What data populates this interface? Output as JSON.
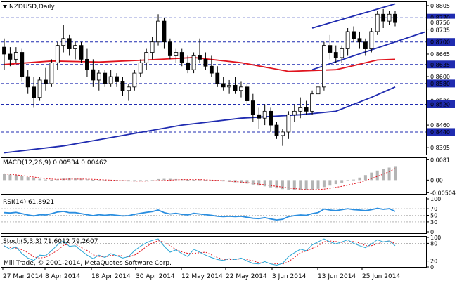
{
  "header": {
    "symbol_label": "NZDUSD,Daily",
    "macd_label": "MACD(12,26,9) 0.00534 0.00462",
    "rsi_label": "RSI(14) 61.8921",
    "stoch_label": "Stoch(5,3,3) 71.6012 79.2607",
    "copyright": "Mill Trade, © 2001-2014, MetaQuotes Software Corp."
  },
  "colors": {
    "bull": "#ffffff",
    "bear": "#000000",
    "ma_fast": "#e0141e",
    "ma_slow": "#1f2bb0",
    "level_line": "#1f2bb0",
    "channel": "#1f2bb0",
    "macd_hist": "#b4b4b4",
    "macd_signal": "#e0141e",
    "rsi": "#2a8ee0",
    "stoch_main": "#2aa6d6",
    "stoch_signal": "#e0141e",
    "grid": "#888888"
  },
  "chart_data": [
    {
      "type": "candlestick",
      "symbol": "NZDUSD",
      "timeframe": "Daily",
      "y_ticks": [
        "0.8805",
        "0.8735",
        "0.8665",
        "0.8600",
        "0.8530",
        "0.8460",
        "0.8395"
      ],
      "ylim": [
        0.8375,
        0.8815
      ],
      "x_ticks": [
        "27 Mar 2014",
        "8 Apr 2014",
        "18 Apr 2014",
        "30 Apr 2014",
        "12 May 2014",
        "22 May 2014",
        "3 Jun 2014",
        "13 Jun 2014",
        "25 Jun 2014"
      ],
      "levels": [
        "0.8770",
        "0.8700",
        "0.8635",
        "0.8580",
        "0.8520",
        "0.8440"
      ],
      "current_price": "0.8756",
      "candles": [
        [
          0.8685,
          0.871,
          0.862,
          0.8665
        ],
        [
          0.8665,
          0.8685,
          0.863,
          0.865
        ],
        [
          0.865,
          0.8685,
          0.864,
          0.867
        ],
        [
          0.867,
          0.868,
          0.8585,
          0.86
        ],
        [
          0.86,
          0.862,
          0.855,
          0.857
        ],
        [
          0.857,
          0.86,
          0.851,
          0.854
        ],
        [
          0.854,
          0.86,
          0.853,
          0.859
        ],
        [
          0.859,
          0.8625,
          0.856,
          0.858
        ],
        [
          0.858,
          0.865,
          0.857,
          0.864
        ],
        [
          0.864,
          0.87,
          0.862,
          0.869
        ],
        [
          0.869,
          0.875,
          0.867,
          0.871
        ],
        [
          0.871,
          0.872,
          0.866,
          0.868
        ],
        [
          0.868,
          0.87,
          0.865,
          0.869
        ],
        [
          0.869,
          0.87,
          0.864,
          0.865
        ],
        [
          0.865,
          0.868,
          0.86,
          0.862
        ],
        [
          0.862,
          0.865,
          0.857,
          0.859
        ],
        [
          0.859,
          0.862,
          0.856,
          0.861
        ],
        [
          0.861,
          0.862,
          0.857,
          0.858
        ],
        [
          0.858,
          0.862,
          0.857,
          0.86
        ],
        [
          0.86,
          0.861,
          0.857,
          0.8585
        ],
        [
          0.8585,
          0.86,
          0.8545,
          0.856
        ],
        [
          0.856,
          0.858,
          0.853,
          0.857
        ],
        [
          0.857,
          0.862,
          0.856,
          0.861
        ],
        [
          0.861,
          0.865,
          0.86,
          0.864
        ],
        [
          0.864,
          0.868,
          0.862,
          0.867
        ],
        [
          0.867,
          0.8715,
          0.865,
          0.87
        ],
        [
          0.87,
          0.878,
          0.869,
          0.876
        ],
        [
          0.876,
          0.877,
          0.868,
          0.87
        ],
        [
          0.87,
          0.871,
          0.865,
          0.866
        ],
        [
          0.866,
          0.868,
          0.864,
          0.867
        ],
        [
          0.867,
          0.868,
          0.863,
          0.864
        ],
        [
          0.864,
          0.866,
          0.861,
          0.862
        ],
        [
          0.862,
          0.867,
          0.861,
          0.866
        ],
        [
          0.866,
          0.871,
          0.864,
          0.865
        ],
        [
          0.865,
          0.867,
          0.862,
          0.863
        ],
        [
          0.863,
          0.866,
          0.86,
          0.861
        ],
        [
          0.861,
          0.863,
          0.857,
          0.858
        ],
        [
          0.858,
          0.86,
          0.856,
          0.857
        ],
        [
          0.857,
          0.859,
          0.855,
          0.8575
        ],
        [
          0.8575,
          0.86,
          0.855,
          0.856
        ],
        [
          0.856,
          0.8585,
          0.854,
          0.857
        ],
        [
          0.857,
          0.858,
          0.852,
          0.853
        ],
        [
          0.853,
          0.855,
          0.847,
          0.849
        ],
        [
          0.849,
          0.851,
          0.845,
          0.848
        ],
        [
          0.848,
          0.852,
          0.846,
          0.85
        ],
        [
          0.85,
          0.851,
          0.844,
          0.846
        ],
        [
          0.846,
          0.847,
          0.842,
          0.843
        ],
        [
          0.843,
          0.845,
          0.84,
          0.844
        ],
        [
          0.844,
          0.85,
          0.842,
          0.849
        ],
        [
          0.849,
          0.852,
          0.847,
          0.85
        ],
        [
          0.85,
          0.854,
          0.848,
          0.851
        ],
        [
          0.851,
          0.853,
          0.849,
          0.85
        ],
        [
          0.85,
          0.856,
          0.849,
          0.855
        ],
        [
          0.855,
          0.858,
          0.853,
          0.857
        ],
        [
          0.857,
          0.87,
          0.856,
          0.869
        ],
        [
          0.869,
          0.872,
          0.865,
          0.867
        ],
        [
          0.867,
          0.869,
          0.864,
          0.8655
        ],
        [
          0.8655,
          0.869,
          0.864,
          0.868
        ],
        [
          0.868,
          0.874,
          0.866,
          0.873
        ],
        [
          0.873,
          0.8745,
          0.87,
          0.871
        ],
        [
          0.871,
          0.873,
          0.868,
          0.87
        ],
        [
          0.87,
          0.871,
          0.866,
          0.868
        ],
        [
          0.868,
          0.874,
          0.867,
          0.873
        ],
        [
          0.873,
          0.879,
          0.872,
          0.878
        ],
        [
          0.878,
          0.8795,
          0.874,
          0.876
        ],
        [
          0.876,
          0.879,
          0.875,
          0.878
        ],
        [
          0.878,
          0.879,
          0.8745,
          0.8756
        ]
      ],
      "ma_fast": {
        "points": [
          [
            0,
            0.8635
          ],
          [
            8,
            0.8645
          ],
          [
            16,
            0.8642
          ],
          [
            24,
            0.8648
          ],
          [
            32,
            0.8655
          ],
          [
            40,
            0.864
          ],
          [
            48,
            0.8615
          ],
          [
            56,
            0.862
          ],
          [
            63,
            0.8648
          ],
          [
            66,
            0.865
          ]
        ]
      },
      "ma_slow": {
        "points": [
          [
            0,
            0.838
          ],
          [
            10,
            0.84
          ],
          [
            20,
            0.843
          ],
          [
            30,
            0.846
          ],
          [
            40,
            0.848
          ],
          [
            50,
            0.849
          ],
          [
            56,
            0.85
          ],
          [
            62,
            0.854
          ],
          [
            66,
            0.857
          ]
        ]
      },
      "channel": {
        "upper": [
          [
            52,
            0.874
          ],
          [
            66,
            0.881
          ]
        ],
        "lower": [
          [
            52,
            0.862
          ],
          [
            66,
            0.87
          ]
        ]
      }
    },
    {
      "type": "bar",
      "name": "MACD",
      "y_ticks": [
        "0.0081",
        "0.00",
        "-0.00504"
      ],
      "ylim": [
        -0.0055,
        0.0085
      ],
      "histogram": [
        0.0025,
        0.0022,
        0.002,
        0.0016,
        0.0012,
        0.0008,
        0.0005,
        0.0002,
        0.0001,
        0.0003,
        0.0006,
        0.0007,
        0.0006,
        0.0005,
        0.0003,
        0.0001,
        -0.0001,
        -0.0002,
        -0.0003,
        -0.0003,
        -0.0004,
        -0.0005,
        -0.0005,
        -0.0004,
        -0.0002,
        0.0,
        0.0004,
        0.0005,
        0.0005,
        0.0004,
        0.0003,
        0.0001,
        0.0001,
        0.0002,
        0.0001,
        -0.0001,
        -0.0003,
        -0.0005,
        -0.0007,
        -0.0009,
        -0.0011,
        -0.0014,
        -0.0018,
        -0.0022,
        -0.0025,
        -0.0029,
        -0.0033,
        -0.0036,
        -0.0038,
        -0.0039,
        -0.004,
        -0.004,
        -0.0038,
        -0.0035,
        -0.0028,
        -0.0022,
        -0.0016,
        -0.001,
        -0.0004,
        0.0002,
        0.001,
        0.002,
        0.003,
        0.0038,
        0.0044,
        0.005,
        0.0053
      ],
      "signal": [
        0.0025,
        0.0023,
        0.0021,
        0.0018,
        0.0015,
        0.0012,
        0.0009,
        0.0006,
        0.0004,
        0.0003,
        0.0003,
        0.0004,
        0.0004,
        0.0004,
        0.0004,
        0.0003,
        0.0002,
        0.0001,
        0.0,
        -0.0001,
        -0.0002,
        -0.0003,
        -0.0004,
        -0.0004,
        -0.0004,
        -0.0003,
        -0.0002,
        -0.0001,
        0.0,
        0.0001,
        0.0002,
        0.0002,
        0.0002,
        0.0002,
        0.0001,
        0.0,
        -0.0001,
        -0.0002,
        -0.0004,
        -0.0006,
        -0.0008,
        -0.001,
        -0.0013,
        -0.0016,
        -0.0019,
        -0.0022,
        -0.0025,
        -0.0028,
        -0.0031,
        -0.0034,
        -0.0036,
        -0.0038,
        -0.0038,
        -0.0038,
        -0.0036,
        -0.0033,
        -0.0029,
        -0.0025,
        -0.002,
        -0.0015,
        -0.0009,
        -0.0002,
        0.0006,
        0.0015,
        0.0024,
        0.0034,
        0.0046
      ]
    },
    {
      "type": "line",
      "name": "RSI",
      "y_ticks": [
        "100",
        "70",
        "50",
        "30",
        "0"
      ],
      "ylim": [
        0,
        100
      ],
      "values": [
        58,
        57,
        59,
        55,
        51,
        48,
        52,
        51,
        55,
        60,
        62,
        58,
        58,
        55,
        52,
        49,
        52,
        50,
        52,
        50,
        48,
        49,
        53,
        56,
        59,
        61,
        66,
        58,
        54,
        56,
        53,
        51,
        56,
        54,
        52,
        50,
        47,
        46,
        47,
        46,
        47,
        44,
        41,
        40,
        43,
        39,
        36,
        38,
        46,
        49,
        51,
        50,
        55,
        58,
        69,
        66,
        64,
        67,
        70,
        67,
        66,
        64,
        67,
        71,
        68,
        70,
        62
      ]
    },
    {
      "type": "line",
      "name": "Stoch",
      "y_ticks": [
        "100",
        "80",
        "20",
        "0"
      ],
      "ylim": [
        0,
        100
      ],
      "main": [
        72,
        60,
        68,
        45,
        30,
        22,
        40,
        38,
        55,
        75,
        88,
        70,
        72,
        55,
        40,
        28,
        40,
        32,
        45,
        38,
        30,
        35,
        55,
        70,
        82,
        90,
        95,
        70,
        50,
        58,
        45,
        35,
        60,
        50,
        40,
        32,
        25,
        22,
        28,
        25,
        30,
        20,
        12,
        10,
        18,
        10,
        6,
        12,
        35,
        48,
        60,
        55,
        75,
        85,
        95,
        85,
        78,
        85,
        92,
        80,
        72,
        65,
        78,
        92,
        85,
        88,
        72
      ],
      "signal": [
        70,
        66,
        64,
        58,
        48,
        34,
        30,
        33,
        44,
        56,
        73,
        78,
        77,
        66,
        56,
        41,
        36,
        33,
        39,
        38,
        38,
        34,
        40,
        53,
        69,
        81,
        89,
        85,
        72,
        59,
        51,
        46,
        46,
        48,
        50,
        41,
        32,
        26,
        25,
        25,
        28,
        25,
        21,
        14,
        13,
        13,
        11,
        9,
        18,
        32,
        48,
        54,
        63,
        72,
        85,
        88,
        86,
        83,
        85,
        86,
        81,
        72,
        72,
        78,
        85,
        88,
        79
      ]
    }
  ]
}
